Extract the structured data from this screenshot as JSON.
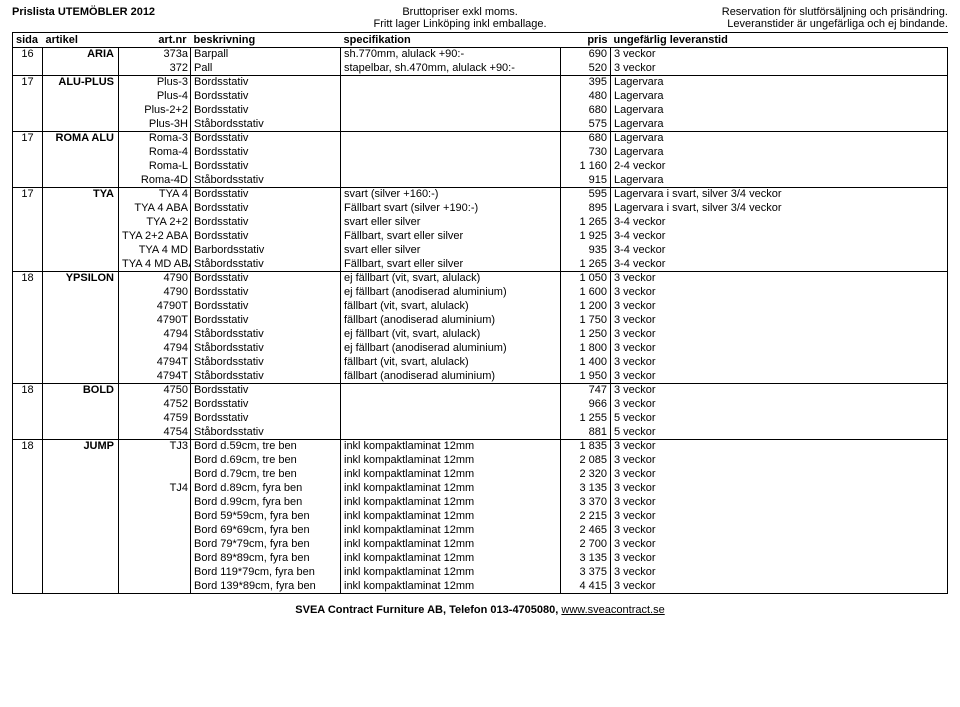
{
  "header": {
    "left": "Prislista UTEMÖBLER 2012",
    "mid1": "Bruttopriser exkl moms.",
    "mid2": "Fritt lager Linköping inkl emballage.",
    "right1": "Reservation för slutförsäljning och prisändring.",
    "right2": "Leveranstider är ungefärliga och ej bindande."
  },
  "columns": {
    "sida": "sida",
    "artikel": "artikel",
    "artnr": "art.nr",
    "beskr": "beskrivning",
    "spec": "specifikation",
    "pris": "pris",
    "lev": "ungefärlig leveranstid"
  },
  "rows": [
    {
      "g": true,
      "sida": "16",
      "art": "ARIA",
      "nr": "373a",
      "beskr": "Barpall",
      "spec": "sh.770mm, alulack +90:-",
      "pris": "690",
      "lev": "3 veckor"
    },
    {
      "sida": "",
      "art": "",
      "nr": "372",
      "beskr": "Pall",
      "spec": "stapelbar, sh.470mm, alulack +90:-",
      "pris": "520",
      "lev": "3 veckor"
    },
    {
      "g": true,
      "sida": "17",
      "art": "ALU-PLUS",
      "nr": "Plus-3",
      "beskr": "Bordsstativ",
      "spec": "",
      "pris": "395",
      "lev": "Lagervara"
    },
    {
      "sida": "",
      "art": "",
      "nr": "Plus-4",
      "beskr": "Bordsstativ",
      "spec": "",
      "pris": "480",
      "lev": "Lagervara"
    },
    {
      "sida": "",
      "art": "",
      "nr": "Plus-2+2",
      "beskr": "Bordsstativ",
      "spec": "",
      "pris": "680",
      "lev": "Lagervara"
    },
    {
      "sida": "",
      "art": "",
      "nr": "Plus-3H",
      "beskr": "Ståbordsstativ",
      "spec": "",
      "pris": "575",
      "lev": "Lagervara"
    },
    {
      "g": true,
      "sida": "17",
      "art": "ROMA ALU",
      "nr": "Roma-3",
      "beskr": "Bordsstativ",
      "spec": "",
      "pris": "680",
      "lev": "Lagervara"
    },
    {
      "sida": "",
      "art": "",
      "nr": "Roma-4",
      "beskr": "Bordsstativ",
      "spec": "",
      "pris": "730",
      "lev": "Lagervara"
    },
    {
      "sida": "",
      "art": "",
      "nr": "Roma-L",
      "beskr": "Bordsstativ",
      "spec": "",
      "pris": "1 160",
      "lev": "2-4 veckor"
    },
    {
      "sida": "",
      "art": "",
      "nr": "Roma-4D",
      "beskr": "Ståbordsstativ",
      "spec": "",
      "pris": "915",
      "lev": "Lagervara"
    },
    {
      "g": true,
      "sida": "17",
      "art": "TYA",
      "nr": "TYA 4",
      "beskr": "Bordsstativ",
      "spec": "svart (silver +160:-)",
      "pris": "595",
      "lev": "Lagervara i svart, silver 3/4 veckor"
    },
    {
      "sida": "",
      "art": "",
      "nr": "TYA 4 ABA",
      "beskr": "Bordsstativ",
      "spec": "Fällbart svart (silver +190:-)",
      "pris": "895",
      "lev": "Lagervara i svart, silver 3/4 veckor"
    },
    {
      "sida": "",
      "art": "",
      "nr": "TYA 2+2",
      "beskr": "Bordsstativ",
      "spec": "svart eller silver",
      "pris": "1 265",
      "lev": "3-4 veckor"
    },
    {
      "sida": "",
      "art": "",
      "nr": "TYA 2+2 ABA",
      "beskr": "Bordsstativ",
      "spec": "Fällbart, svart eller silver",
      "pris": "1 925",
      "lev": "3-4 veckor"
    },
    {
      "sida": "",
      "art": "",
      "nr": "TYA 4 MD",
      "beskr": "Barbordsstativ",
      "spec": "svart eller silver",
      "pris": "935",
      "lev": "3-4 veckor"
    },
    {
      "sida": "",
      "art": "",
      "nr": "TYA 4 MD ABA",
      "beskr": "Ståbordsstativ",
      "spec": "Fällbart, svart eller silver",
      "pris": "1 265",
      "lev": "3-4 veckor"
    },
    {
      "g": true,
      "sida": "18",
      "art": "YPSILON",
      "nr": "4790",
      "beskr": "Bordsstativ",
      "spec": "ej fällbart (vit, svart, alulack)",
      "pris": "1 050",
      "lev": "3 veckor"
    },
    {
      "sida": "",
      "art": "",
      "nr": "4790",
      "beskr": "Bordsstativ",
      "spec": "ej fällbart (anodiserad aluminium)",
      "pris": "1 600",
      "lev": "3 veckor"
    },
    {
      "sida": "",
      "art": "",
      "nr": "4790T",
      "beskr": "Bordsstativ",
      "spec": "fällbart (vit, svart, alulack)",
      "pris": "1 200",
      "lev": "3 veckor"
    },
    {
      "sida": "",
      "art": "",
      "nr": "4790T",
      "beskr": "Bordsstativ",
      "spec": "fällbart (anodiserad aluminium)",
      "pris": "1 750",
      "lev": "3 veckor"
    },
    {
      "sida": "",
      "art": "",
      "nr": "4794",
      "beskr": "Ståbordsstativ",
      "spec": "ej fällbart (vit, svart, alulack)",
      "pris": "1 250",
      "lev": "3 veckor"
    },
    {
      "sida": "",
      "art": "",
      "nr": "4794",
      "beskr": "Ståbordsstativ",
      "spec": "ej fällbart (anodiserad aluminium)",
      "pris": "1 800",
      "lev": "3 veckor"
    },
    {
      "sida": "",
      "art": "",
      "nr": "4794T",
      "beskr": "Ståbordsstativ",
      "spec": "fällbart (vit, svart, alulack)",
      "pris": "1 400",
      "lev": "3 veckor"
    },
    {
      "sida": "",
      "art": "",
      "nr": "4794T",
      "beskr": "Ståbordsstativ",
      "spec": "fällbart (anodiserad aluminium)",
      "pris": "1 950",
      "lev": "3 veckor"
    },
    {
      "g": true,
      "sida": "18",
      "art": "BOLD",
      "nr": "4750",
      "beskr": "Bordsstativ",
      "spec": "",
      "pris": "747",
      "lev": "3 veckor"
    },
    {
      "sida": "",
      "art": "",
      "nr": "4752",
      "beskr": "Bordsstativ",
      "spec": "",
      "pris": "966",
      "lev": "3 veckor"
    },
    {
      "sida": "",
      "art": "",
      "nr": "4759",
      "beskr": "Bordsstativ",
      "spec": "",
      "pris": "1 255",
      "lev": "5 veckor"
    },
    {
      "sida": "",
      "art": "",
      "nr": "4754",
      "beskr": "Ståbordsstativ",
      "spec": "",
      "pris": "881",
      "lev": "5 veckor"
    },
    {
      "g": true,
      "sida": "18",
      "art": "JUMP",
      "nr": "TJ3",
      "beskr": "Bord d.59cm, tre ben",
      "spec": "inkl kompaktlaminat 12mm",
      "pris": "1 835",
      "lev": "3 veckor"
    },
    {
      "sida": "",
      "art": "",
      "nr": "",
      "beskr": "Bord d.69cm, tre ben",
      "spec": "inkl kompaktlaminat 12mm",
      "pris": "2 085",
      "lev": "3 veckor"
    },
    {
      "sida": "",
      "art": "",
      "nr": "",
      "beskr": "Bord d.79cm, tre ben",
      "spec": "inkl kompaktlaminat 12mm",
      "pris": "2 320",
      "lev": "3 veckor"
    },
    {
      "sida": "",
      "art": "",
      "nr": "TJ4",
      "beskr": "Bord d.89cm, fyra ben",
      "spec": "inkl kompaktlaminat 12mm",
      "pris": "3 135",
      "lev": "3 veckor"
    },
    {
      "sida": "",
      "art": "",
      "nr": "",
      "beskr": "Bord d.99cm, fyra ben",
      "spec": "inkl kompaktlaminat 12mm",
      "pris": "3 370",
      "lev": "3 veckor"
    },
    {
      "sida": "",
      "art": "",
      "nr": "",
      "beskr": "Bord 59*59cm, fyra ben",
      "spec": "inkl kompaktlaminat 12mm",
      "pris": "2 215",
      "lev": "3 veckor"
    },
    {
      "sida": "",
      "art": "",
      "nr": "",
      "beskr": "Bord 69*69cm, fyra ben",
      "spec": "inkl kompaktlaminat 12mm",
      "pris": "2 465",
      "lev": "3 veckor"
    },
    {
      "sida": "",
      "art": "",
      "nr": "",
      "beskr": "Bord 79*79cm, fyra ben",
      "spec": "inkl kompaktlaminat 12mm",
      "pris": "2 700",
      "lev": "3 veckor"
    },
    {
      "sida": "",
      "art": "",
      "nr": "",
      "beskr": "Bord 89*89cm, fyra ben",
      "spec": "inkl kompaktlaminat 12mm",
      "pris": "3 135",
      "lev": "3 veckor"
    },
    {
      "sida": "",
      "art": "",
      "nr": "",
      "beskr": "Bord 119*79cm, fyra ben",
      "spec": "inkl kompaktlaminat 12mm",
      "pris": "3 375",
      "lev": "3 veckor"
    },
    {
      "sida": "",
      "art": "",
      "nr": "",
      "beskr": "Bord 139*89cm, fyra ben",
      "spec": "inkl kompaktlaminat 12mm",
      "pris": "4 415",
      "lev": "3 veckor"
    }
  ],
  "footer": {
    "bold": "SVEA Contract Furniture AB, Telefon 013-4705080, ",
    "link": "www.sveacontract.se"
  }
}
